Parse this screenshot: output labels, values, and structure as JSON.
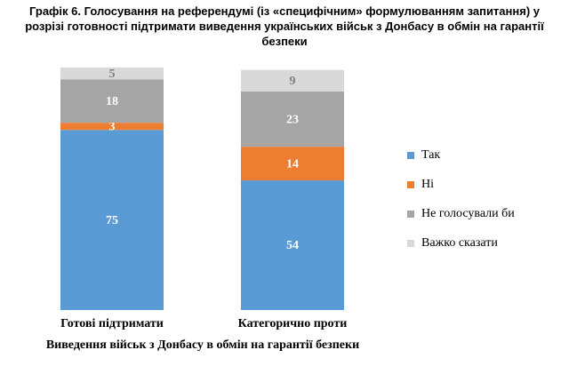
{
  "chart_data": {
    "type": "stacked_bar",
    "title": "Графік 6. Голосування на референдумі (із «специфічним» формулюванням запитання) у розрізі готовності підтримати виведення українських військ з Донбасу в обмін на гарантії безпеки",
    "x_label": "Виведення військ з Донбасу в обмін на гарантії безпеки",
    "categories": [
      "Готові підтримати",
      "Категорично проти"
    ],
    "series": [
      {
        "name": "Так",
        "color": "#5b9bd5",
        "values": [
          75,
          54
        ]
      },
      {
        "name": "Ні",
        "color": "#ed7d31",
        "values": [
          3,
          14
        ]
      },
      {
        "name": "Не голосували би",
        "color": "#a5a5a5",
        "values": [
          18,
          23
        ]
      },
      {
        "name": "Важко сказати",
        "color": "#d9d9d9",
        "values": [
          5,
          9
        ]
      }
    ],
    "ylim": [
      0,
      101
    ],
    "legend": "right"
  }
}
